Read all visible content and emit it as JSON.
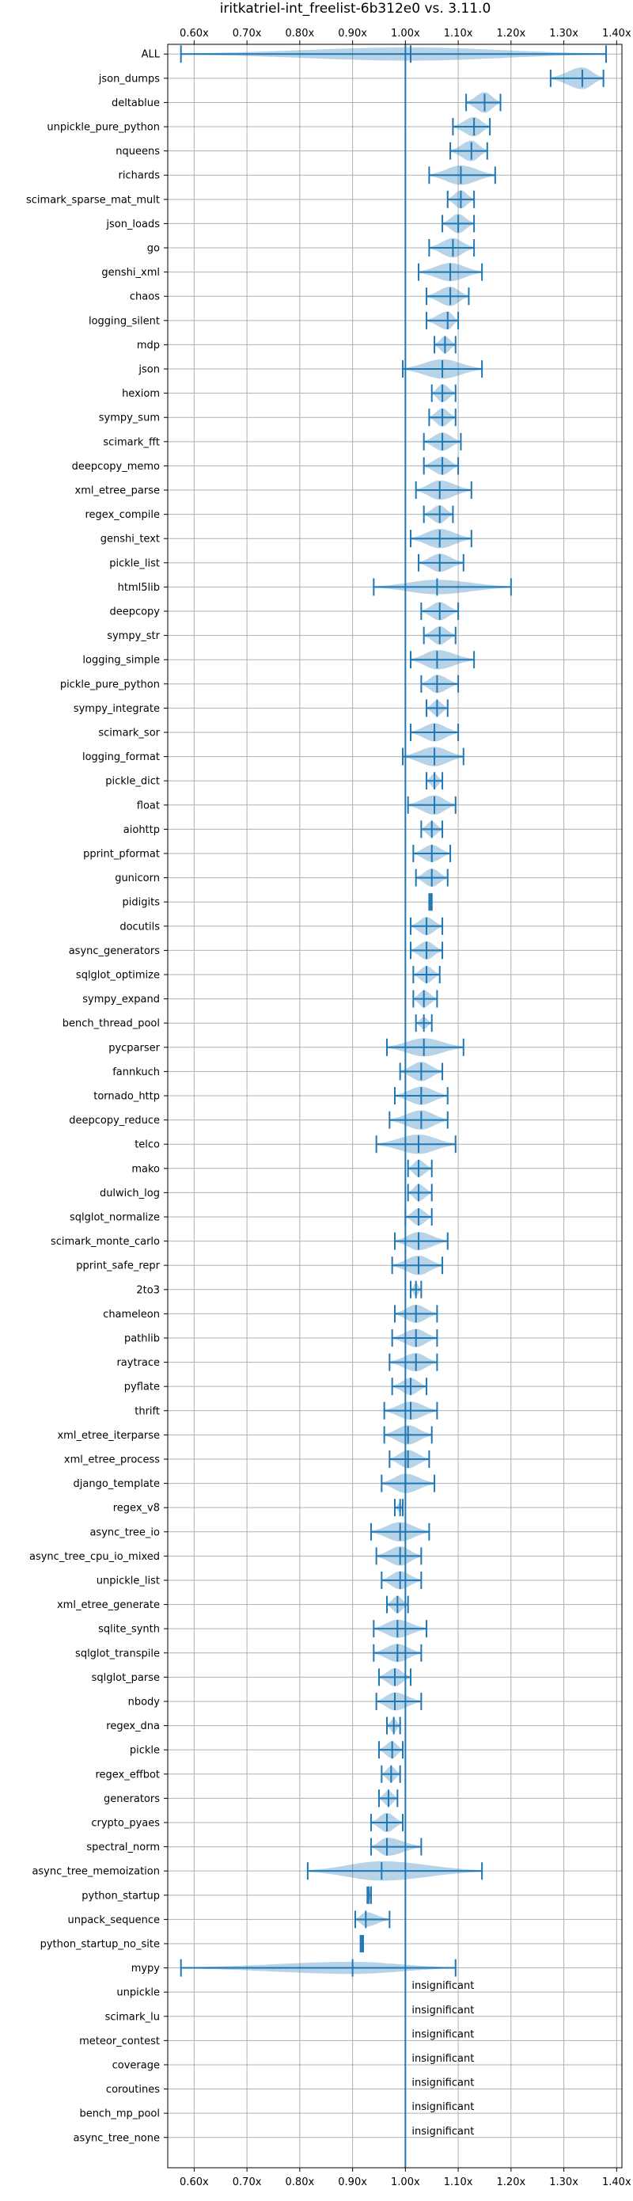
{
  "colors": {
    "series": "#1f77b4",
    "grid": "#b0b0b0"
  },
  "chart_data": {
    "type": "violin",
    "title": "iritkatriel-int_freelist-6b312e0 vs. 3.11.0",
    "xlim": [
      0.55,
      1.41
    ],
    "xticks": [
      0.6,
      0.7,
      0.8,
      0.9,
      1.0,
      1.1,
      1.2,
      1.3,
      1.4
    ],
    "xtick_labels": [
      "0.60x",
      "0.70x",
      "0.80x",
      "0.90x",
      "1.00x",
      "1.10x",
      "1.20x",
      "1.30x",
      "1.40x"
    ],
    "reference_line": 1.0,
    "grid": true,
    "ticks_on_top_and_bottom": true,
    "insignificant_label": "insignificant",
    "benchmarks": [
      {
        "name": "ALL",
        "min": 0.575,
        "max": 1.38,
        "median": 1.01,
        "width": 0.55
      },
      {
        "name": "json_dumps",
        "min": 1.275,
        "max": 1.375,
        "median": 1.335,
        "width": 0.9
      },
      {
        "name": "deltablue",
        "min": 1.115,
        "max": 1.18,
        "median": 1.15,
        "width": 0.85
      },
      {
        "name": "unpickle_pure_python",
        "min": 1.09,
        "max": 1.16,
        "median": 1.13,
        "width": 0.8
      },
      {
        "name": "nqueens",
        "min": 1.085,
        "max": 1.155,
        "median": 1.125,
        "width": 0.85
      },
      {
        "name": "richards",
        "min": 1.045,
        "max": 1.17,
        "median": 1.105,
        "width": 0.8
      },
      {
        "name": "scimark_sparse_mat_mult",
        "min": 1.08,
        "max": 1.13,
        "median": 1.105,
        "width": 0.75
      },
      {
        "name": "json_loads",
        "min": 1.07,
        "max": 1.13,
        "median": 1.1,
        "width": 0.8
      },
      {
        "name": "go",
        "min": 1.045,
        "max": 1.13,
        "median": 1.09,
        "width": 0.8
      },
      {
        "name": "genshi_xml",
        "min": 1.025,
        "max": 1.145,
        "median": 1.085,
        "width": 0.75
      },
      {
        "name": "chaos",
        "min": 1.04,
        "max": 1.12,
        "median": 1.085,
        "width": 0.8
      },
      {
        "name": "logging_silent",
        "min": 1.04,
        "max": 1.1,
        "median": 1.08,
        "width": 0.75
      },
      {
        "name": "mdp",
        "min": 1.055,
        "max": 1.095,
        "median": 1.075,
        "width": 0.7
      },
      {
        "name": "json",
        "min": 0.995,
        "max": 1.145,
        "median": 1.07,
        "width": 0.8
      },
      {
        "name": "hexiom",
        "min": 1.05,
        "max": 1.095,
        "median": 1.07,
        "width": 0.75
      },
      {
        "name": "sympy_sum",
        "min": 1.045,
        "max": 1.095,
        "median": 1.07,
        "width": 0.75
      },
      {
        "name": "scimark_fft",
        "min": 1.035,
        "max": 1.105,
        "median": 1.07,
        "width": 0.75
      },
      {
        "name": "deepcopy_memo",
        "min": 1.035,
        "max": 1.1,
        "median": 1.07,
        "width": 0.75
      },
      {
        "name": "xml_etree_parse",
        "min": 1.02,
        "max": 1.125,
        "median": 1.065,
        "width": 0.8
      },
      {
        "name": "regex_compile",
        "min": 1.035,
        "max": 1.09,
        "median": 1.065,
        "width": 0.75
      },
      {
        "name": "genshi_text",
        "min": 1.01,
        "max": 1.125,
        "median": 1.065,
        "width": 0.8
      },
      {
        "name": "pickle_list",
        "min": 1.025,
        "max": 1.11,
        "median": 1.065,
        "width": 0.75
      },
      {
        "name": "html5lib",
        "min": 0.94,
        "max": 1.2,
        "median": 1.06,
        "width": 0.6
      },
      {
        "name": "deepcopy",
        "min": 1.03,
        "max": 1.1,
        "median": 1.065,
        "width": 0.75
      },
      {
        "name": "sympy_str",
        "min": 1.035,
        "max": 1.095,
        "median": 1.065,
        "width": 0.75
      },
      {
        "name": "logging_simple",
        "min": 1.01,
        "max": 1.13,
        "median": 1.06,
        "width": 0.8
      },
      {
        "name": "pickle_pure_python",
        "min": 1.03,
        "max": 1.1,
        "median": 1.06,
        "width": 0.75
      },
      {
        "name": "sympy_integrate",
        "min": 1.04,
        "max": 1.08,
        "median": 1.06,
        "width": 0.65
      },
      {
        "name": "scimark_sor",
        "min": 1.01,
        "max": 1.1,
        "median": 1.055,
        "width": 0.75
      },
      {
        "name": "logging_format",
        "min": 0.995,
        "max": 1.11,
        "median": 1.055,
        "width": 0.8
      },
      {
        "name": "pickle_dict",
        "min": 1.04,
        "max": 1.07,
        "median": 1.055,
        "width": 0.6
      },
      {
        "name": "float",
        "min": 1.005,
        "max": 1.095,
        "median": 1.055,
        "width": 0.8
      },
      {
        "name": "aiohttp",
        "min": 1.03,
        "max": 1.07,
        "median": 1.05,
        "width": 0.65
      },
      {
        "name": "pprint_pformat",
        "min": 1.015,
        "max": 1.085,
        "median": 1.05,
        "width": 0.7
      },
      {
        "name": "gunicorn",
        "min": 1.02,
        "max": 1.08,
        "median": 1.05,
        "width": 0.75
      },
      {
        "name": "pidigits",
        "min": 1.045,
        "max": 1.05,
        "median": 1.048,
        "width": 0.6
      },
      {
        "name": "docutils",
        "min": 1.01,
        "max": 1.07,
        "median": 1.04,
        "width": 0.75
      },
      {
        "name": "async_generators",
        "min": 1.01,
        "max": 1.07,
        "median": 1.04,
        "width": 0.75
      },
      {
        "name": "sqlglot_optimize",
        "min": 1.015,
        "max": 1.065,
        "median": 1.04,
        "width": 0.7
      },
      {
        "name": "sympy_expand",
        "min": 1.015,
        "max": 1.06,
        "median": 1.035,
        "width": 0.7
      },
      {
        "name": "bench_thread_pool",
        "min": 1.02,
        "max": 1.05,
        "median": 1.035,
        "width": 0.5
      },
      {
        "name": "pycparser",
        "min": 0.965,
        "max": 1.11,
        "median": 1.035,
        "width": 0.75
      },
      {
        "name": "fannkuch",
        "min": 0.99,
        "max": 1.07,
        "median": 1.03,
        "width": 0.8
      },
      {
        "name": "tornado_http",
        "min": 0.98,
        "max": 1.08,
        "median": 1.03,
        "width": 0.75
      },
      {
        "name": "deepcopy_reduce",
        "min": 0.97,
        "max": 1.08,
        "median": 1.03,
        "width": 0.8
      },
      {
        "name": "telco",
        "min": 0.945,
        "max": 1.095,
        "median": 1.025,
        "width": 0.8
      },
      {
        "name": "mako",
        "min": 1.005,
        "max": 1.05,
        "median": 1.025,
        "width": 0.7
      },
      {
        "name": "dulwich_log",
        "min": 1.005,
        "max": 1.05,
        "median": 1.025,
        "width": 0.7
      },
      {
        "name": "sqlglot_normalize",
        "min": 1.0,
        "max": 1.05,
        "median": 1.025,
        "width": 0.7
      },
      {
        "name": "scimark_monte_carlo",
        "min": 0.98,
        "max": 1.08,
        "median": 1.025,
        "width": 0.75
      },
      {
        "name": "pprint_safe_repr",
        "min": 0.975,
        "max": 1.07,
        "median": 1.025,
        "width": 0.8
      },
      {
        "name": "2to3",
        "min": 1.01,
        "max": 1.03,
        "median": 1.02,
        "width": 0.55
      },
      {
        "name": "chameleon",
        "min": 0.98,
        "max": 1.06,
        "median": 1.02,
        "width": 0.75
      },
      {
        "name": "pathlib",
        "min": 0.975,
        "max": 1.06,
        "median": 1.02,
        "width": 0.75
      },
      {
        "name": "raytrace",
        "min": 0.97,
        "max": 1.06,
        "median": 1.02,
        "width": 0.75
      },
      {
        "name": "pyflate",
        "min": 0.975,
        "max": 1.04,
        "median": 1.01,
        "width": 0.7
      },
      {
        "name": "thrift",
        "min": 0.96,
        "max": 1.06,
        "median": 1.01,
        "width": 0.75
      },
      {
        "name": "xml_etree_iterparse",
        "min": 0.96,
        "max": 1.05,
        "median": 1.005,
        "width": 0.8
      },
      {
        "name": "xml_etree_process",
        "min": 0.97,
        "max": 1.045,
        "median": 1.005,
        "width": 0.75
      },
      {
        "name": "django_template",
        "min": 0.955,
        "max": 1.055,
        "median": 1.0,
        "width": 0.8
      },
      {
        "name": "regex_v8",
        "min": 0.98,
        "max": 0.995,
        "median": 0.99,
        "width": 0.4
      },
      {
        "name": "async_tree_io",
        "min": 0.935,
        "max": 1.045,
        "median": 0.99,
        "width": 0.8
      },
      {
        "name": "async_tree_cpu_io_mixed",
        "min": 0.945,
        "max": 1.03,
        "median": 0.99,
        "width": 0.8
      },
      {
        "name": "unpickle_list",
        "min": 0.955,
        "max": 1.03,
        "median": 0.99,
        "width": 0.75
      },
      {
        "name": "xml_etree_generate",
        "min": 0.965,
        "max": 1.005,
        "median": 0.985,
        "width": 0.7
      },
      {
        "name": "sqlite_synth",
        "min": 0.94,
        "max": 1.04,
        "median": 0.985,
        "width": 0.75
      },
      {
        "name": "sqlglot_transpile",
        "min": 0.94,
        "max": 1.03,
        "median": 0.985,
        "width": 0.75
      },
      {
        "name": "sqlglot_parse",
        "min": 0.95,
        "max": 1.01,
        "median": 0.98,
        "width": 0.75
      },
      {
        "name": "nbody",
        "min": 0.945,
        "max": 1.03,
        "median": 0.98,
        "width": 0.75
      },
      {
        "name": "regex_dna",
        "min": 0.965,
        "max": 0.99,
        "median": 0.978,
        "width": 0.6
      },
      {
        "name": "pickle",
        "min": 0.95,
        "max": 0.995,
        "median": 0.975,
        "width": 0.7
      },
      {
        "name": "regex_effbot",
        "min": 0.955,
        "max": 0.99,
        "median": 0.973,
        "width": 0.65
      },
      {
        "name": "generators",
        "min": 0.95,
        "max": 0.985,
        "median": 0.968,
        "width": 0.65
      },
      {
        "name": "crypto_pyaes",
        "min": 0.935,
        "max": 0.995,
        "median": 0.965,
        "width": 0.8
      },
      {
        "name": "spectral_norm",
        "min": 0.935,
        "max": 1.03,
        "median": 0.965,
        "width": 0.75
      },
      {
        "name": "async_tree_memoization",
        "min": 0.815,
        "max": 1.145,
        "median": 0.955,
        "width": 0.8
      },
      {
        "name": "python_startup",
        "min": 0.928,
        "max": 0.935,
        "median": 0.931,
        "width": 0.5
      },
      {
        "name": "unpack_sequence",
        "min": 0.905,
        "max": 0.97,
        "median": 0.925,
        "width": 0.6
      },
      {
        "name": "python_startup_no_site",
        "min": 0.915,
        "max": 0.92,
        "median": 0.918,
        "width": 0.5
      },
      {
        "name": "mypy",
        "min": 0.575,
        "max": 1.095,
        "median": 0.9,
        "width": 0.5
      },
      {
        "name": "unpickle",
        "insignificant": true
      },
      {
        "name": "scimark_lu",
        "insignificant": true
      },
      {
        "name": "meteor_contest",
        "insignificant": true
      },
      {
        "name": "coverage",
        "insignificant": true
      },
      {
        "name": "coroutines",
        "insignificant": true
      },
      {
        "name": "bench_mp_pool",
        "insignificant": true
      },
      {
        "name": "async_tree_none",
        "insignificant": true
      }
    ]
  }
}
